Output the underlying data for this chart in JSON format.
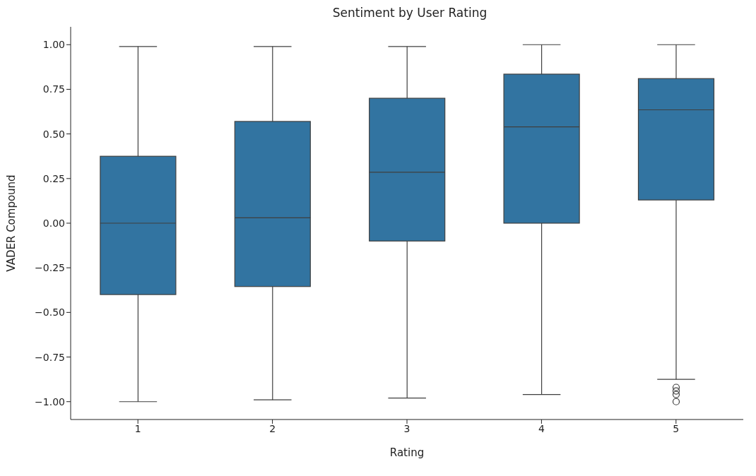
{
  "chart_data": {
    "type": "box",
    "title": "Sentiment by User Rating",
    "xlabel": "Rating",
    "ylabel": "VADER Compound",
    "categories": [
      "1",
      "2",
      "3",
      "4",
      "5"
    ],
    "series": [
      {
        "color": "#3274a1",
        "boxes": [
          {
            "low": -1.0,
            "q1": -0.4,
            "median": 0.0,
            "q3": 0.375,
            "high": 0.99
          },
          {
            "low": -0.99,
            "q1": -0.355,
            "median": 0.03,
            "q3": 0.57,
            "high": 0.99
          },
          {
            "low": -0.98,
            "q1": -0.1,
            "median": 0.285,
            "q3": 0.7,
            "high": 0.99
          },
          {
            "low": -0.96,
            "q1": 0.0,
            "median": 0.54,
            "q3": 0.835,
            "high": 1.0
          },
          {
            "low": -0.875,
            "q1": 0.13,
            "median": 0.635,
            "q3": 0.81,
            "high": 1.0,
            "outliers": [
              -0.92,
              -0.94,
              -0.96,
              -1.0
            ]
          }
        ]
      }
    ],
    "ylim": [
      -1.1,
      1.1
    ],
    "yticks": [
      {
        "value": -1,
        "label": "−1.00"
      },
      {
        "value": -0.75,
        "label": "−0.75"
      },
      {
        "value": -0.5,
        "label": "−0.50"
      },
      {
        "value": -0.25,
        "label": "−0.25"
      },
      {
        "value": 0,
        "label": "0.00"
      },
      {
        "value": 0.25,
        "label": "0.25"
      },
      {
        "value": 0.5,
        "label": "0.50"
      },
      {
        "value": 0.75,
        "label": "0.75"
      },
      {
        "value": 1,
        "label": "1.00"
      }
    ],
    "grid": false,
    "legend": false
  }
}
